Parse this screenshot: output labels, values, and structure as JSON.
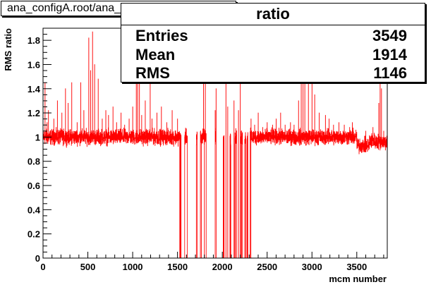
{
  "title": "ana_configA.root/ana_configC.root",
  "stats": {
    "name": "ratio",
    "rows": [
      {
        "key": "Entries",
        "value": "3549"
      },
      {
        "key": "Mean",
        "value": "1914"
      },
      {
        "key": "RMS",
        "value": "1146"
      }
    ]
  },
  "colors": {
    "line": "#ff0000",
    "axis": "#000000",
    "background": "#ffffff"
  },
  "chart_data": {
    "type": "line",
    "xlabel": "mcm number",
    "ylabel": "RMS ratio",
    "xlim": [
      0,
      3840
    ],
    "ylim": [
      0,
      1.9
    ],
    "x_ticks": [
      0,
      500,
      1000,
      1500,
      2000,
      2500,
      3000,
      3500
    ],
    "x_tick_labels": [
      "0",
      "500",
      "1000",
      "1500",
      "2000",
      "2500",
      "3000",
      "3500"
    ],
    "y_ticks": [
      0,
      0.2,
      0.4,
      0.6,
      0.8,
      1,
      1.2,
      1.4,
      1.6,
      1.8
    ],
    "y_tick_labels": [
      "0",
      "0.2",
      "0.4",
      "0.6",
      "0.8",
      "1",
      "1.2",
      "1.4",
      "1.6",
      "1.8"
    ],
    "grid": false,
    "legend": "none",
    "baseline": 1.0,
    "baseline_noise": 0.03,
    "bins": 3840,
    "segments": [
      {
        "x": [
          0,
          3500
        ],
        "level": 1.0
      },
      {
        "x": [
          3500,
          3640
        ],
        "level": 0.93
      },
      {
        "x": [
          3640,
          3700
        ],
        "level": 0.97
      },
      {
        "x": [
          3700,
          3840
        ],
        "level": 0.96
      }
    ],
    "dead_ranges": [
      [
        1540,
        1580
      ],
      [
        1610,
        1710
      ],
      [
        1720,
        1755
      ],
      [
        1820,
        1920
      ],
      [
        1930,
        2010
      ],
      [
        2020,
        2085
      ],
      [
        2095,
        2140
      ],
      [
        2160,
        2205
      ],
      [
        2225,
        2250
      ],
      [
        2262,
        2275
      ],
      [
        2285,
        2310
      ]
    ],
    "zero_spikes": [
      1525,
      1532,
      1695,
      1765,
      1800,
      1895,
      2015,
      2090,
      2145,
      2215,
      2260,
      2280,
      2318
    ],
    "spikes": [
      {
        "x": 22,
        "y": 1.45
      },
      {
        "x": 45,
        "y": 1.12
      },
      {
        "x": 60,
        "y": 1.22
      },
      {
        "x": 120,
        "y": 1.15
      },
      {
        "x": 160,
        "y": 1.3
      },
      {
        "x": 190,
        "y": 1.05
      },
      {
        "x": 210,
        "y": 1.2
      },
      {
        "x": 250,
        "y": 1.4
      },
      {
        "x": 280,
        "y": 1.28
      },
      {
        "x": 320,
        "y": 1.45
      },
      {
        "x": 380,
        "y": 1.12
      },
      {
        "x": 420,
        "y": 1.45
      },
      {
        "x": 455,
        "y": 1.22
      },
      {
        "x": 510,
        "y": 1.82
      },
      {
        "x": 530,
        "y": 1.55
      },
      {
        "x": 552,
        "y": 1.87
      },
      {
        "x": 575,
        "y": 1.6
      },
      {
        "x": 615,
        "y": 1.48
      },
      {
        "x": 660,
        "y": 1.15
      },
      {
        "x": 700,
        "y": 1.22
      },
      {
        "x": 730,
        "y": 1.18
      },
      {
        "x": 780,
        "y": 1.25
      },
      {
        "x": 820,
        "y": 1.12
      },
      {
        "x": 870,
        "y": 1.2
      },
      {
        "x": 910,
        "y": 1.1
      },
      {
        "x": 960,
        "y": 1.15
      },
      {
        "x": 1000,
        "y": 1.25
      },
      {
        "x": 1040,
        "y": 1.75
      },
      {
        "x": 1055,
        "y": 1.5
      },
      {
        "x": 1075,
        "y": 1.82
      },
      {
        "x": 1100,
        "y": 1.18
      },
      {
        "x": 1140,
        "y": 1.3
      },
      {
        "x": 1195,
        "y": 1.6
      },
      {
        "x": 1215,
        "y": 1.15
      },
      {
        "x": 1270,
        "y": 1.2
      },
      {
        "x": 1320,
        "y": 1.25
      },
      {
        "x": 1380,
        "y": 1.12
      },
      {
        "x": 1440,
        "y": 1.22
      },
      {
        "x": 1500,
        "y": 1.15
      },
      {
        "x": 1790,
        "y": 1.82
      },
      {
        "x": 1810,
        "y": 1.45
      },
      {
        "x": 1920,
        "y": 1.22
      },
      {
        "x": 1930,
        "y": 1.4
      },
      {
        "x": 2040,
        "y": 1.6
      },
      {
        "x": 2060,
        "y": 1.25
      },
      {
        "x": 2130,
        "y": 1.3
      },
      {
        "x": 2180,
        "y": 1.22
      },
      {
        "x": 2200,
        "y": 1.55
      },
      {
        "x": 2320,
        "y": 1.15
      },
      {
        "x": 2360,
        "y": 1.1
      },
      {
        "x": 2400,
        "y": 1.2
      },
      {
        "x": 2450,
        "y": 1.08
      },
      {
        "x": 2500,
        "y": 1.12
      },
      {
        "x": 2560,
        "y": 1.1
      },
      {
        "x": 2600,
        "y": 1.15
      },
      {
        "x": 2650,
        "y": 1.2
      },
      {
        "x": 2700,
        "y": 1.1
      },
      {
        "x": 2760,
        "y": 1.12
      },
      {
        "x": 2800,
        "y": 1.1
      },
      {
        "x": 2850,
        "y": 1.3
      },
      {
        "x": 2880,
        "y": 1.6
      },
      {
        "x": 2900,
        "y": 1.82
      },
      {
        "x": 2920,
        "y": 1.5
      },
      {
        "x": 2960,
        "y": 1.45
      },
      {
        "x": 3000,
        "y": 1.82
      },
      {
        "x": 3030,
        "y": 1.35
      },
      {
        "x": 3080,
        "y": 1.2
      },
      {
        "x": 3150,
        "y": 1.18
      },
      {
        "x": 3190,
        "y": 1.15
      },
      {
        "x": 3240,
        "y": 1.1
      },
      {
        "x": 3300,
        "y": 1.12
      },
      {
        "x": 3360,
        "y": 1.1
      },
      {
        "x": 3420,
        "y": 1.08
      },
      {
        "x": 3450,
        "y": 1.12
      },
      {
        "x": 3600,
        "y": 1.05
      },
      {
        "x": 3680,
        "y": 1.08
      },
      {
        "x": 3745,
        "y": 1.28
      },
      {
        "x": 3760,
        "y": 1.8
      },
      {
        "x": 3775,
        "y": 1.4
      },
      {
        "x": 3800,
        "y": 1.05
      }
    ]
  }
}
